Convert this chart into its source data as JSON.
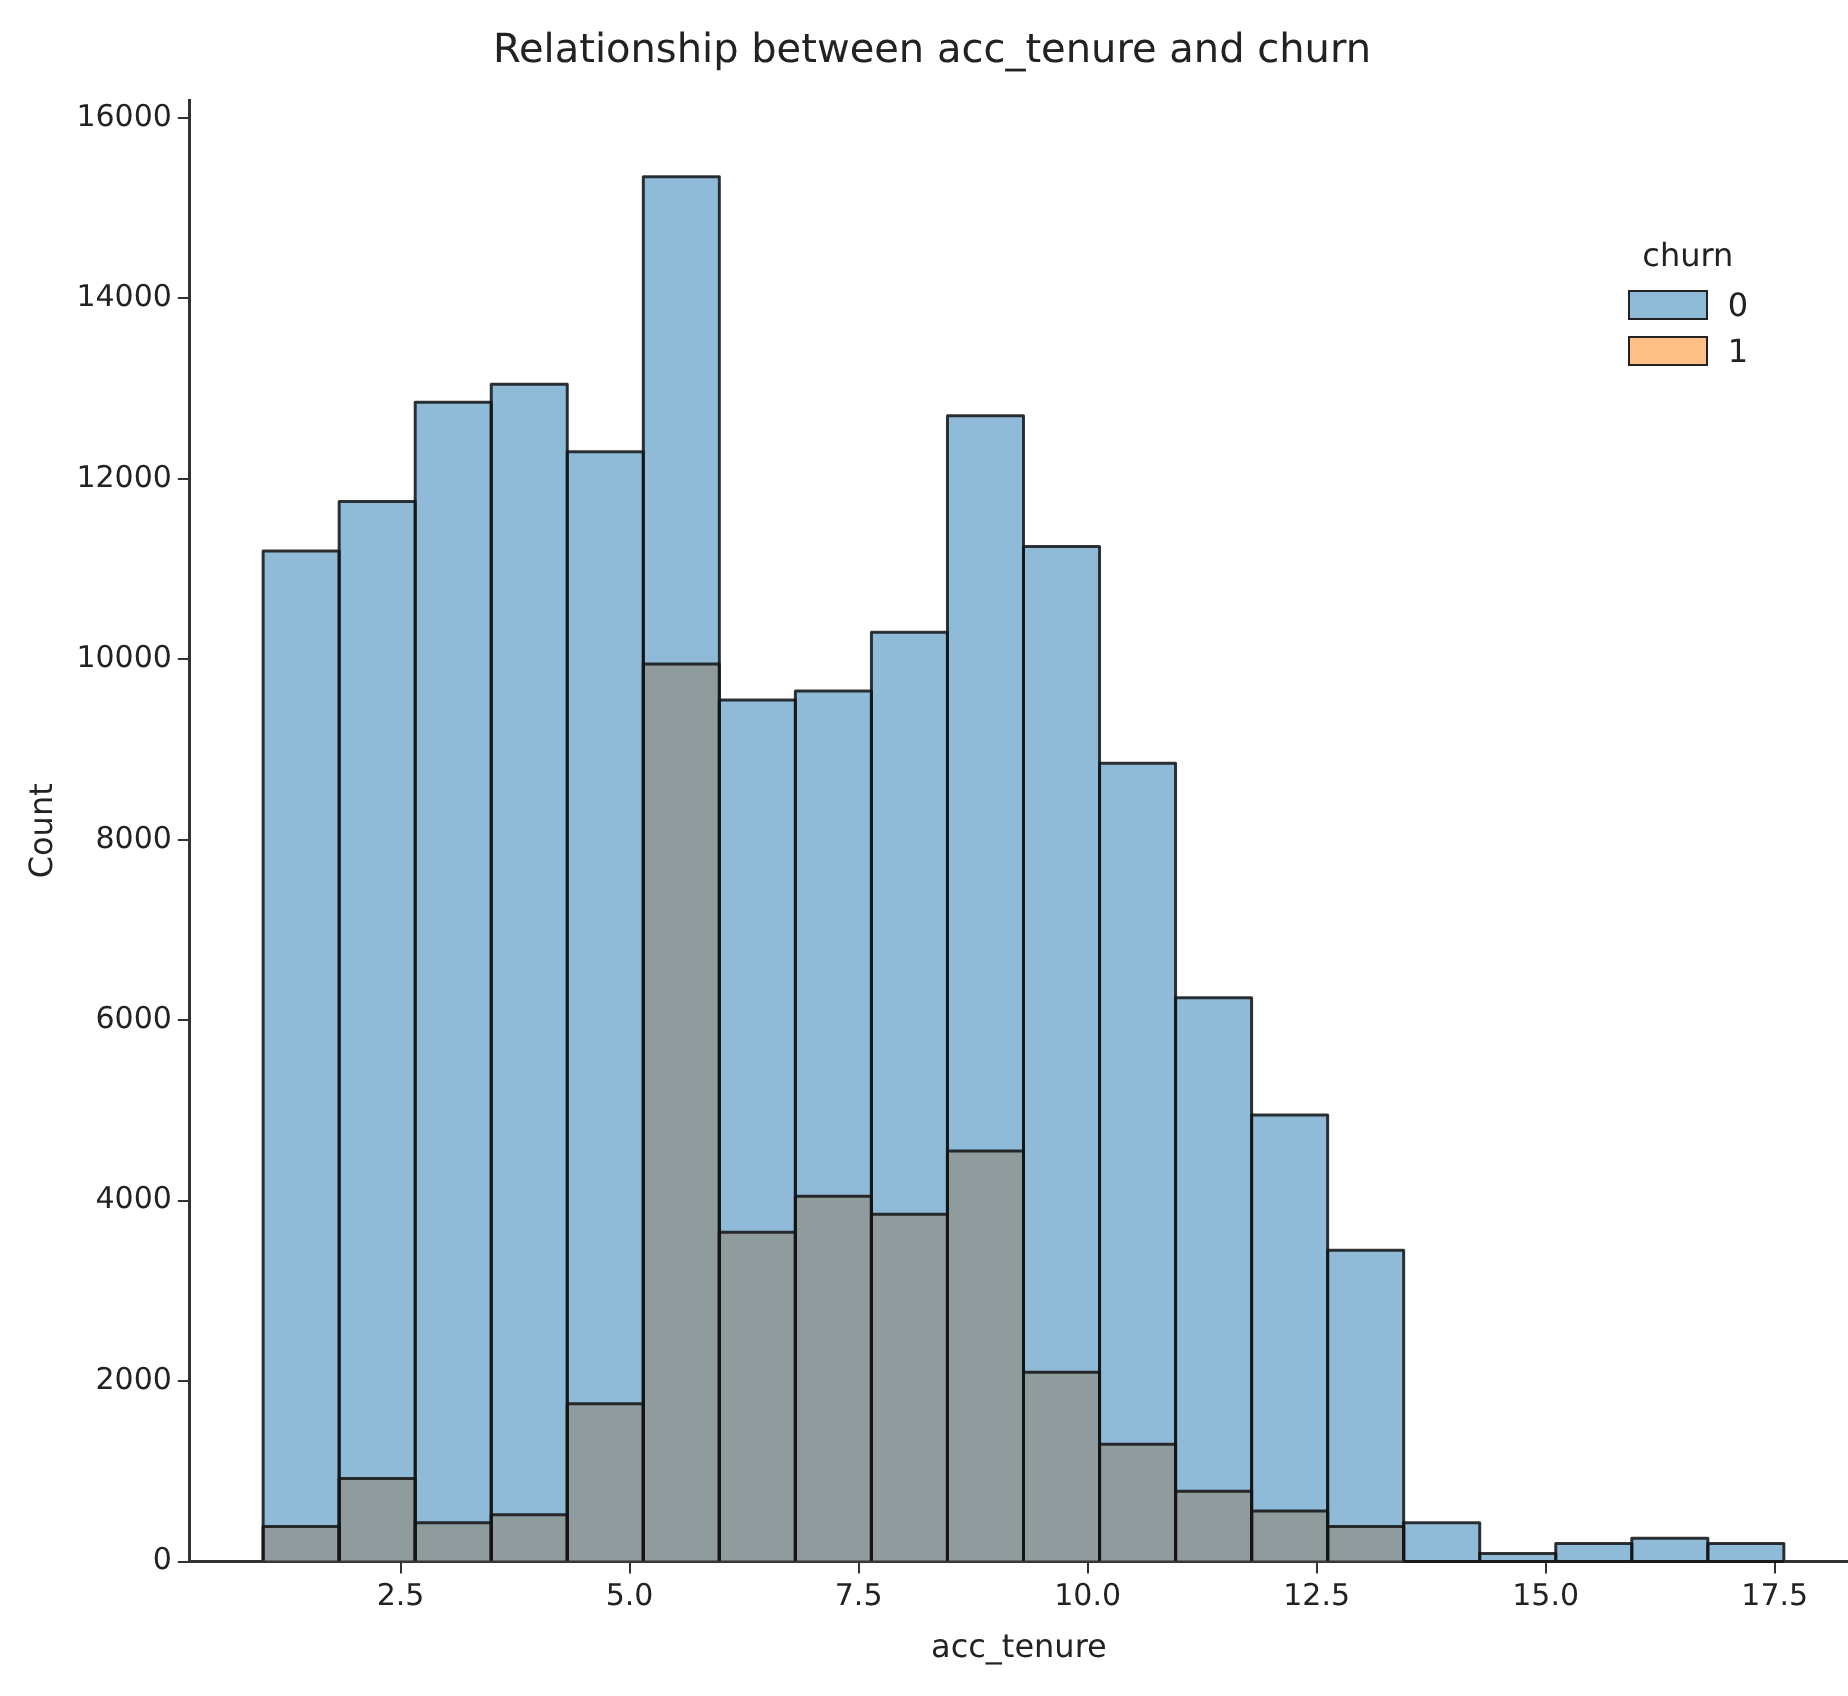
{
  "chart_data": {
    "type": "histogram",
    "title": "Relationship between acc_tenure and churn",
    "xlabel": "acc_tenure",
    "ylabel": "Count",
    "legend_title": "churn",
    "legend": "top right",
    "grid": false,
    "bins": [
      1,
      1.83,
      2.66,
      3.49,
      4.32,
      5.15,
      5.98,
      6.81,
      7.64,
      8.47,
      9.3,
      10.13,
      10.96,
      11.79,
      12.62,
      13.45,
      14.28,
      15.11,
      15.94,
      16.77,
      17.6
    ],
    "series": [
      {
        "name": "0",
        "color": "#1f77b4",
        "values": [
          11200,
          11750,
          12850,
          13050,
          12300,
          15350,
          9550,
          9650,
          10300,
          12700,
          11250,
          8850,
          6250,
          4950,
          3450,
          430,
          90,
          200,
          260,
          200
        ]
      },
      {
        "name": "1",
        "color": "#ff7f0e",
        "values": [
          390,
          920,
          430,
          520,
          1750,
          9950,
          3650,
          4050,
          3850,
          4550,
          2100,
          1300,
          780,
          560,
          390,
          null,
          0,
          0,
          0,
          0
        ]
      }
    ],
    "xlim": [
      0.2,
      18.3
    ],
    "xticks": [
      2.5,
      {
        "value": 5,
        "label": "5.0"
      },
      7.5,
      {
        "value": 10,
        "label": "10.0"
      },
      12.5,
      {
        "value": 15,
        "label": "15.0"
      },
      17.5
    ],
    "ylim": [
      0,
      16200
    ],
    "yticks": [
      0,
      2000,
      4000,
      6000,
      8000,
      10000,
      12000,
      14000,
      16000
    ]
  }
}
